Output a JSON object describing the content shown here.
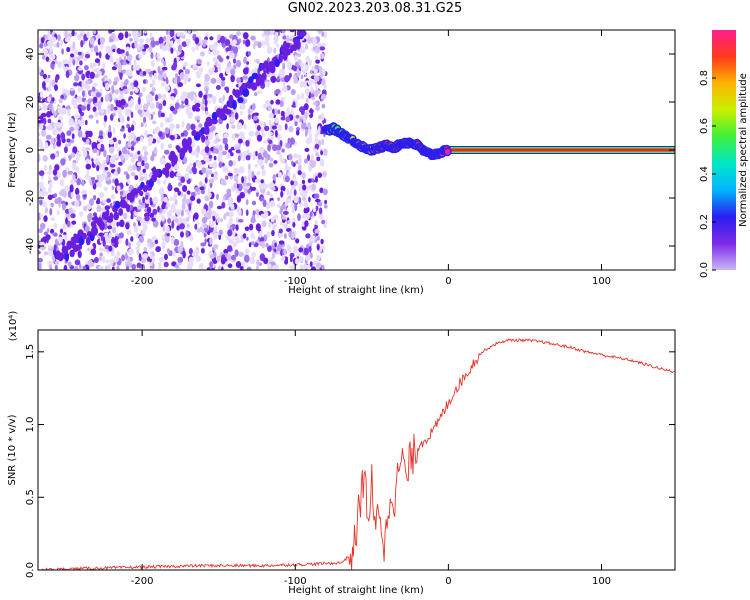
{
  "title": "GN02.2023.203.08.31.G25",
  "colors": {
    "snr_line": "#e8332a",
    "spec_points": "#6a1fe0",
    "spec_line_core": "#ff1e1e",
    "colorbar": [
      "#c9b6f5",
      "#7c2ae8",
      "#2a1ff0",
      "#00b4ff",
      "#00e8c8",
      "#3ef03a",
      "#c8f000",
      "#ffb400",
      "#ff3a1a",
      "#ff1e8c"
    ]
  },
  "chart_data": [
    {
      "type": "heatmap",
      "title": "",
      "xlabel": "Height of straight line (km)",
      "ylabel": "Frequency (Hz)",
      "xlim": [
        -268,
        148
      ],
      "ylim": [
        -50,
        50
      ],
      "xticks": [
        -200,
        -100,
        0,
        100
      ],
      "xtick_labels": [
        "-200",
        "-100",
        "0",
        "100"
      ],
      "yticks": [
        -40,
        -20,
        0,
        20,
        40
      ],
      "ytick_labels": [
        "-40",
        "-20",
        "0",
        "20",
        "40"
      ],
      "colorbar": {
        "label": "Normalized spectral amplitude",
        "range": [
          0,
          1
        ],
        "ticks": [
          0,
          0.2,
          0.4,
          0.6,
          0.8
        ],
        "tick_labels": [
          "0.0",
          "0.2",
          "0.4",
          "0.6",
          "0.8"
        ]
      },
      "noise_region_x": [
        -268,
        -80
      ],
      "diagonal_trace": {
        "x": [
          -255,
          -245,
          -230,
          -210,
          -190,
          -170,
          -150,
          -135,
          -120,
          -105,
          -95
        ],
        "y": [
          -45,
          -40,
          -32,
          -22,
          -10,
          2,
          14,
          24,
          33,
          42,
          48
        ]
      },
      "strong_trace": {
        "x": [
          -80,
          -75,
          -70,
          -65,
          -60,
          -55,
          -50,
          -45,
          -40,
          -35,
          -30,
          -25,
          -20,
          -15,
          -10,
          -5,
          0,
          40,
          80,
          148
        ],
        "y": [
          8,
          9,
          7,
          5,
          3,
          1,
          0,
          1,
          2,
          1,
          3,
          3,
          2,
          -1,
          -2,
          -1,
          0,
          0,
          0,
          0
        ],
        "amplitude": [
          0.5,
          0.55,
          0.5,
          0.6,
          0.7,
          0.75,
          0.8,
          0.85,
          0.85,
          0.9,
          0.9,
          0.9,
          0.92,
          0.92,
          0.95,
          0.95,
          1,
          1,
          1,
          1
        ]
      }
    },
    {
      "type": "line",
      "title": "",
      "xlabel": "Height of straight line (km)",
      "ylabel": "SNR (10 * v/v)",
      "yscale_label": "(x10⁴)",
      "xlim": [
        -268,
        148
      ],
      "ylim": [
        0,
        1.65
      ],
      "xticks": [
        -200,
        -100,
        0,
        100
      ],
      "xtick_labels": [
        "-200",
        "-100",
        "0",
        "100"
      ],
      "yticks": [
        0,
        0.5,
        1.0,
        1.5
      ],
      "ytick_labels": [
        "0.0",
        "0.5",
        "1.0",
        "1.5"
      ],
      "series": [
        {
          "x": [
            -268,
            -240,
            -200,
            -160,
            -120,
            -90,
            -70,
            -62,
            -58,
            -55,
            -52,
            -50,
            -48,
            -45,
            -42,
            -40,
            -38,
            -35,
            -32,
            -30,
            -28,
            -25,
            -20,
            -15,
            -10,
            -5,
            0,
            5,
            10,
            15,
            20,
            25,
            30,
            35,
            40,
            50,
            60,
            70,
            80,
            90,
            100,
            110,
            120,
            130,
            140,
            148
          ],
          "y": [
            0.0,
            0.01,
            0.02,
            0.03,
            0.03,
            0.04,
            0.05,
            0.12,
            0.45,
            0.65,
            0.35,
            0.6,
            0.25,
            0.45,
            0.15,
            0.3,
            0.55,
            0.5,
            0.7,
            0.8,
            0.6,
            0.75,
            0.85,
            0.9,
            0.95,
            1.05,
            1.15,
            1.25,
            1.32,
            1.4,
            1.48,
            1.52,
            1.55,
            1.57,
            1.58,
            1.58,
            1.57,
            1.55,
            1.53,
            1.5,
            1.48,
            1.46,
            1.44,
            1.41,
            1.38,
            1.36
          ]
        }
      ]
    }
  ]
}
